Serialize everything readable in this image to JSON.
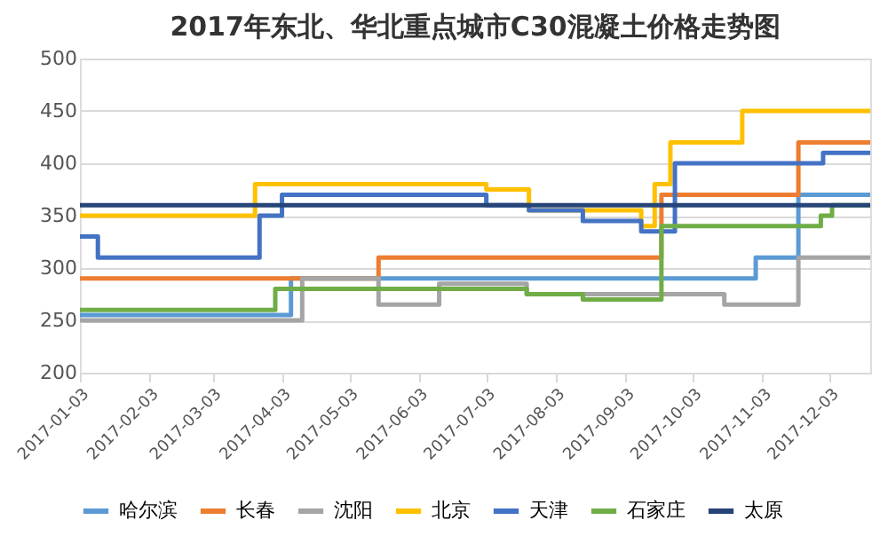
{
  "chart_data": {
    "type": "step",
    "title": "2017年东北、华北重点城市C30混凝土价格走势图",
    "xlim": [
      "2017-01-03",
      "2017-12-21"
    ],
    "xticks": [
      "2017-01-03",
      "2017-02-03",
      "2017-03-03",
      "2017-04-03",
      "2017-05-03",
      "2017-06-03",
      "2017-07-03",
      "2017-08-03",
      "2017-09-03",
      "2017-10-03",
      "2017-11-03",
      "2017-12-03"
    ],
    "ylim": [
      200,
      500
    ],
    "yticks": [
      200,
      250,
      300,
      350,
      400,
      450,
      500
    ],
    "grid": "y",
    "legend": "bottom",
    "marker": "none",
    "line_style": "solid",
    "series": [
      {
        "name": "哈尔滨",
        "color": "#5b9bd5",
        "x": [
          "2017-01-03",
          "2017-04-07",
          "2017-10-31",
          "2017-11-19",
          "2017-12-21"
        ],
        "values": [
          255,
          290,
          310,
          370,
          370
        ]
      },
      {
        "name": "长春",
        "color": "#ed7d31",
        "x": [
          "2017-01-03",
          "2017-05-16",
          "2017-09-19",
          "2017-11-19",
          "2017-12-21"
        ],
        "values": [
          290,
          310,
          370,
          420,
          420
        ]
      },
      {
        "name": "沈阳",
        "color": "#a5a5a5",
        "x": [
          "2017-01-03",
          "2017-04-12",
          "2017-05-16",
          "2017-06-12",
          "2017-07-21",
          "2017-10-17",
          "2017-11-19",
          "2017-12-21"
        ],
        "values": [
          250,
          290,
          265,
          285,
          275,
          265,
          310,
          310
        ]
      },
      {
        "name": "北京",
        "color": "#ffc000",
        "x": [
          "2017-01-03",
          "2017-03-22",
          "2017-07-03",
          "2017-07-22",
          "2017-09-10",
          "2017-09-16",
          "2017-09-23",
          "2017-10-25",
          "2017-12-21"
        ],
        "values": [
          350,
          380,
          375,
          355,
          340,
          380,
          420,
          450,
          450
        ]
      },
      {
        "name": "天津",
        "color": "#4472c4",
        "x": [
          "2017-01-03",
          "2017-01-11",
          "2017-03-24",
          "2017-04-03",
          "2017-07-03",
          "2017-07-22",
          "2017-08-15",
          "2017-09-10",
          "2017-09-25",
          "2017-11-30",
          "2017-12-21"
        ],
        "values": [
          330,
          310,
          350,
          370,
          360,
          355,
          345,
          335,
          400,
          410,
          410
        ]
      },
      {
        "name": "石家庄",
        "color": "#70ad47",
        "x": [
          "2017-01-03",
          "2017-03-31",
          "2017-07-21",
          "2017-08-15",
          "2017-09-19",
          "2017-11-29",
          "2017-12-04",
          "2017-12-21"
        ],
        "values": [
          260,
          280,
          275,
          270,
          340,
          350,
          360,
          360
        ]
      },
      {
        "name": "太原",
        "color": "#264478",
        "x": [
          "2017-01-03",
          "2017-12-21"
        ],
        "values": [
          360,
          360
        ]
      }
    ]
  }
}
